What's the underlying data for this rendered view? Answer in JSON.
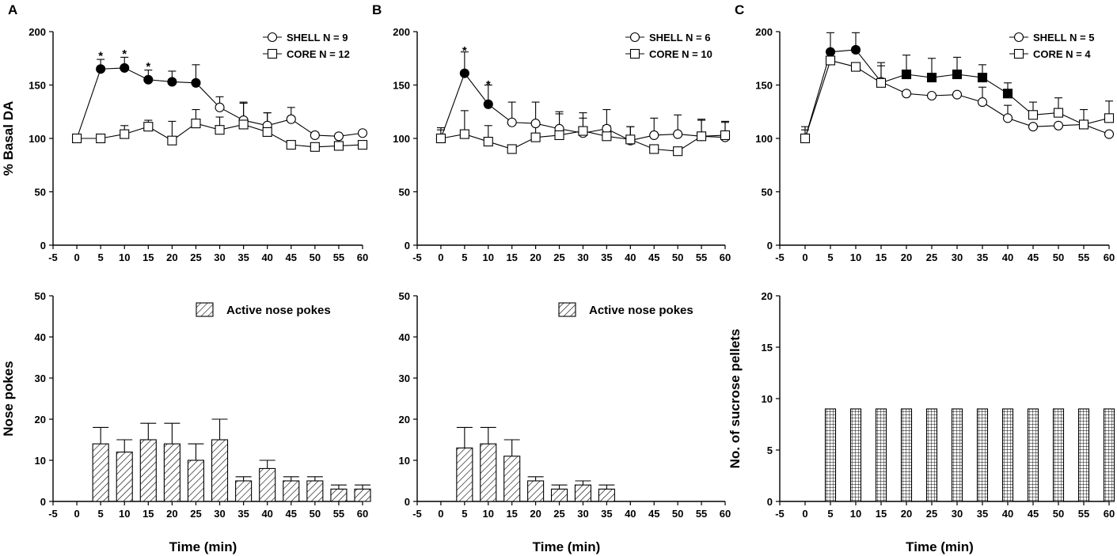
{
  "colors": {
    "ink": "#000000",
    "paper": "#ffffff"
  },
  "chart_data": [
    {
      "id": "A-top",
      "panel_letter": "A",
      "type": "line",
      "ylabel": "% Basal DA",
      "xlabel": "",
      "xlim": [
        -5,
        60
      ],
      "ylim": [
        0,
        200
      ],
      "x_ticks": [
        -5,
        0,
        5,
        10,
        15,
        20,
        25,
        30,
        35,
        40,
        45,
        50,
        55,
        60
      ],
      "y_ticks": [
        0,
        50,
        100,
        150,
        200
      ],
      "series": [
        {
          "name": "SHELL",
          "n_label": "SHELL N = 9",
          "marker": "circle",
          "x": [
            0,
            5,
            10,
            15,
            20,
            25,
            30,
            35,
            40,
            45,
            50,
            55,
            60
          ],
          "values": [
            100,
            165,
            166,
            155,
            153,
            152,
            129,
            117,
            112,
            118,
            103,
            102,
            105
          ],
          "errors": [
            0,
            9,
            10,
            9,
            10,
            17,
            10,
            17,
            12,
            11,
            0,
            0,
            0
          ],
          "filled": [
            false,
            true,
            true,
            true,
            true,
            true,
            false,
            false,
            false,
            false,
            false,
            false,
            false
          ]
        },
        {
          "name": "CORE",
          "n_label": "CORE N = 12",
          "marker": "square",
          "x": [
            0,
            5,
            10,
            15,
            20,
            25,
            30,
            35,
            40,
            45,
            50,
            55,
            60
          ],
          "values": [
            100,
            100,
            104,
            111,
            98,
            114,
            108,
            113,
            106,
            94,
            92,
            93,
            94
          ],
          "errors": [
            0,
            0,
            8,
            6,
            18,
            13,
            12,
            20,
            18,
            0,
            0,
            0,
            0
          ],
          "filled": [
            false,
            false,
            false,
            false,
            false,
            false,
            false,
            false,
            false,
            false,
            false,
            false,
            false
          ]
        }
      ],
      "annotations": [
        {
          "text": "*",
          "x": 5,
          "y": 181
        },
        {
          "text": "*",
          "x": 10,
          "y": 183
        },
        {
          "text": "*",
          "x": 15,
          "y": 171
        }
      ],
      "legend_position": "top-right"
    },
    {
      "id": "B-top",
      "panel_letter": "B",
      "type": "line",
      "ylabel": "",
      "xlabel": "",
      "xlim": [
        -5,
        60
      ],
      "ylim": [
        0,
        200
      ],
      "x_ticks": [
        -5,
        0,
        5,
        10,
        15,
        20,
        25,
        30,
        35,
        40,
        45,
        50,
        55,
        60
      ],
      "y_ticks": [
        0,
        50,
        100,
        150,
        200
      ],
      "series": [
        {
          "name": "SHELL",
          "n_label": "SHELL N = 6",
          "marker": "circle",
          "x": [
            0,
            5,
            10,
            15,
            20,
            25,
            30,
            35,
            40,
            45,
            50,
            55,
            60
          ],
          "values": [
            100,
            161,
            132,
            115,
            114,
            109,
            105,
            109,
            98,
            103,
            104,
            102,
            101
          ],
          "errors": [
            10,
            20,
            18,
            19,
            20,
            16,
            19,
            18,
            13,
            16,
            18,
            16,
            15
          ],
          "filled": [
            false,
            true,
            true,
            false,
            false,
            false,
            false,
            false,
            false,
            false,
            false,
            false,
            false
          ]
        },
        {
          "name": "CORE",
          "n_label": "CORE N = 10",
          "marker": "square",
          "x": [
            0,
            5,
            10,
            15,
            20,
            25,
            30,
            35,
            40,
            45,
            50,
            55,
            60
          ],
          "values": [
            100,
            104,
            97,
            90,
            101,
            103,
            107,
            102,
            99,
            90,
            88,
            102,
            103
          ],
          "errors": [
            8,
            22,
            15,
            0,
            14,
            20,
            12,
            10,
            12,
            0,
            0,
            15,
            12
          ],
          "filled": [
            false,
            false,
            false,
            false,
            false,
            false,
            false,
            false,
            false,
            false,
            false,
            false,
            false
          ]
        }
      ],
      "annotations": [
        {
          "text": "*",
          "x": 5,
          "y": 186
        },
        {
          "text": "*",
          "x": 10,
          "y": 154
        }
      ],
      "legend_position": "top-right"
    },
    {
      "id": "C-top",
      "panel_letter": "C",
      "type": "line",
      "ylabel": "",
      "xlabel": "",
      "xlim": [
        -5,
        60
      ],
      "ylim": [
        0,
        200
      ],
      "x_ticks": [
        -5,
        0,
        5,
        10,
        15,
        20,
        25,
        30,
        35,
        40,
        45,
        50,
        55,
        60
      ],
      "y_ticks": [
        0,
        50,
        100,
        150,
        200
      ],
      "series": [
        {
          "name": "SHELL",
          "n_label": "SHELL N = 5",
          "marker": "circle",
          "x": [
            0,
            5,
            10,
            15,
            20,
            25,
            30,
            35,
            40,
            45,
            50,
            55,
            60
          ],
          "values": [
            100,
            181,
            183,
            153,
            142,
            140,
            141,
            134,
            119,
            111,
            112,
            113,
            104
          ],
          "errors": [
            11,
            18,
            16,
            18,
            0,
            0,
            0,
            14,
            12,
            0,
            0,
            0,
            0
          ],
          "filled": [
            false,
            true,
            true,
            false,
            false,
            false,
            false,
            false,
            false,
            false,
            false,
            false,
            false
          ]
        },
        {
          "name": "CORE",
          "n_label": "CORE N = 4",
          "marker": "square",
          "x": [
            0,
            5,
            10,
            15,
            20,
            25,
            30,
            35,
            40,
            45,
            50,
            55,
            60
          ],
          "values": [
            100,
            173,
            167,
            152,
            160,
            157,
            160,
            157,
            142,
            122,
            124,
            113,
            119
          ],
          "errors": [
            8,
            0,
            0,
            16,
            18,
            18,
            16,
            12,
            10,
            12,
            14,
            14,
            16
          ],
          "filled": [
            false,
            false,
            false,
            false,
            true,
            true,
            true,
            true,
            true,
            false,
            false,
            false,
            false
          ]
        }
      ],
      "annotations": [],
      "legend_position": "top-right"
    },
    {
      "id": "A-bottom",
      "panel_letter": "",
      "type": "bar",
      "ylabel": "Nose pokes",
      "xlabel": "Time (min)",
      "xlim": [
        -5,
        60
      ],
      "ylim": [
        0,
        50
      ],
      "x_ticks": [
        -5,
        0,
        5,
        10,
        15,
        20,
        25,
        30,
        35,
        40,
        45,
        50,
        55,
        60
      ],
      "y_ticks": [
        0,
        10,
        20,
        30,
        40,
        50
      ],
      "pattern": "hatch",
      "series": [
        {
          "name": "Active nose pokes",
          "x": [
            5,
            10,
            15,
            20,
            25,
            30,
            35,
            40,
            45,
            50,
            55,
            60
          ],
          "values": [
            14,
            12,
            15,
            14,
            10,
            15,
            5,
            8,
            5,
            5,
            3,
            3
          ],
          "errors": [
            4,
            3,
            4,
            5,
            4,
            5,
            1,
            2,
            1,
            1,
            1,
            1
          ]
        }
      ],
      "legend_position": "top-right"
    },
    {
      "id": "B-bottom",
      "panel_letter": "",
      "type": "bar",
      "ylabel": "",
      "xlabel": "Time (min)",
      "xlim": [
        -5,
        60
      ],
      "ylim": [
        0,
        50
      ],
      "x_ticks": [
        -5,
        0,
        5,
        10,
        15,
        20,
        25,
        30,
        35,
        40,
        45,
        50,
        55,
        60
      ],
      "y_ticks": [
        0,
        10,
        20,
        30,
        40,
        50
      ],
      "pattern": "hatch",
      "series": [
        {
          "name": "Active nose pokes",
          "x": [
            5,
            10,
            15,
            20,
            25,
            30,
            35
          ],
          "values": [
            13,
            14,
            11,
            5,
            3,
            4,
            3
          ],
          "errors": [
            5,
            4,
            4,
            1,
            1,
            1,
            1
          ]
        }
      ],
      "legend_position": "top-right"
    },
    {
      "id": "C-bottom",
      "panel_letter": "",
      "type": "bar",
      "ylabel": "No. of sucrose pellets",
      "xlabel": "Time (min)",
      "xlim": [
        -5,
        60
      ],
      "ylim": [
        0,
        20
      ],
      "x_ticks": [
        -5,
        0,
        5,
        10,
        15,
        20,
        25,
        30,
        35,
        40,
        45,
        50,
        55,
        60
      ],
      "y_ticks": [
        0,
        5,
        10,
        15,
        20
      ],
      "pattern": "grid",
      "series": [
        {
          "name": "Sucrose pellets",
          "x": [
            5,
            10,
            15,
            20,
            25,
            30,
            35,
            40,
            45,
            50,
            55,
            60
          ],
          "values": [
            9,
            9,
            9,
            9,
            9,
            9,
            9,
            9,
            9,
            9,
            9,
            9
          ],
          "errors": [
            0,
            0,
            0,
            0,
            0,
            0,
            0,
            0,
            0,
            0,
            0,
            0
          ]
        }
      ],
      "legend_position": "none"
    }
  ]
}
